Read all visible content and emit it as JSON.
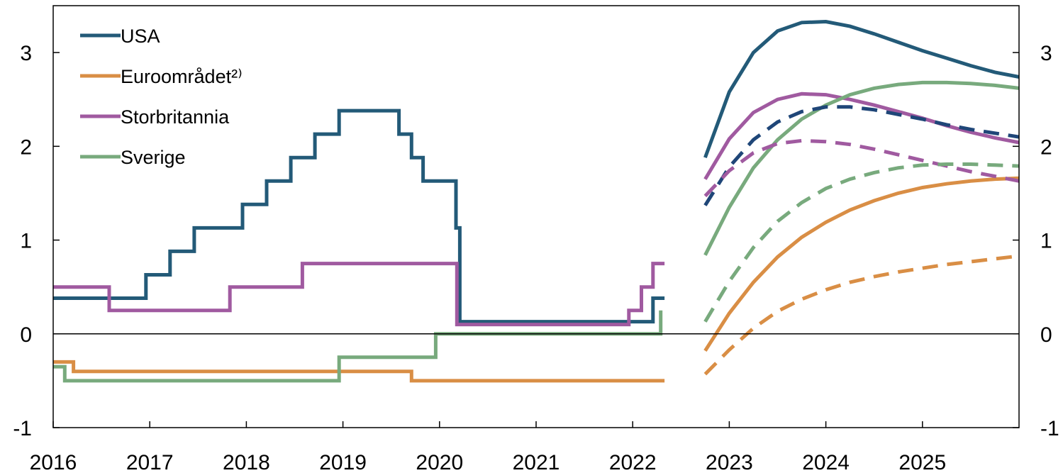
{
  "chart_data": {
    "type": "line",
    "title": "",
    "xlabel": "",
    "ylabel": "",
    "xlim": [
      2016,
      2026
    ],
    "ylim": [
      -1,
      3.5
    ],
    "x_ticks": [
      "2016",
      "2017",
      "2018",
      "2019",
      "2020",
      "2021",
      "2022",
      "2023",
      "2024",
      "2025"
    ],
    "y_ticks": [
      "-1",
      "0",
      "1",
      "2",
      "3"
    ],
    "zero_line": true,
    "grid": false,
    "legend_position": "top-left",
    "series": [
      {
        "name": "USA",
        "color": "#235a78",
        "style": "step",
        "points": [
          [
            2016.0,
            0.38
          ],
          [
            2016.96,
            0.38
          ],
          [
            2016.96,
            0.63
          ],
          [
            2017.21,
            0.63
          ],
          [
            2017.21,
            0.88
          ],
          [
            2017.46,
            0.88
          ],
          [
            2017.46,
            1.13
          ],
          [
            2017.96,
            1.13
          ],
          [
            2017.96,
            1.38
          ],
          [
            2018.21,
            1.38
          ],
          [
            2018.21,
            1.63
          ],
          [
            2018.46,
            1.63
          ],
          [
            2018.46,
            1.88
          ],
          [
            2018.71,
            1.88
          ],
          [
            2018.71,
            2.13
          ],
          [
            2018.96,
            2.13
          ],
          [
            2018.96,
            2.38
          ],
          [
            2019.58,
            2.38
          ],
          [
            2019.58,
            2.13
          ],
          [
            2019.71,
            2.13
          ],
          [
            2019.71,
            1.88
          ],
          [
            2019.83,
            1.88
          ],
          [
            2019.83,
            1.63
          ],
          [
            2020.17,
            1.63
          ],
          [
            2020.17,
            1.13
          ],
          [
            2020.21,
            1.13
          ],
          [
            2020.21,
            0.13
          ],
          [
            2022.21,
            0.13
          ],
          [
            2022.21,
            0.38
          ],
          [
            2022.33,
            0.38
          ]
        ]
      },
      {
        "name": "Euroområdet²⁾",
        "color": "#d98e45",
        "style": "step",
        "points": [
          [
            2016.0,
            -0.3
          ],
          [
            2016.21,
            -0.3
          ],
          [
            2016.21,
            -0.4
          ],
          [
            2019.71,
            -0.4
          ],
          [
            2019.71,
            -0.5
          ],
          [
            2022.33,
            -0.5
          ]
        ]
      },
      {
        "name": "Storbritannia",
        "color": "#a05aa0",
        "style": "step",
        "points": [
          [
            2016.0,
            0.5
          ],
          [
            2016.58,
            0.5
          ],
          [
            2016.58,
            0.25
          ],
          [
            2017.83,
            0.25
          ],
          [
            2017.83,
            0.5
          ],
          [
            2018.58,
            0.5
          ],
          [
            2018.58,
            0.75
          ],
          [
            2020.18,
            0.75
          ],
          [
            2020.18,
            0.1
          ],
          [
            2021.96,
            0.1
          ],
          [
            2021.96,
            0.25
          ],
          [
            2022.09,
            0.25
          ],
          [
            2022.09,
            0.5
          ],
          [
            2022.21,
            0.5
          ],
          [
            2022.21,
            0.75
          ],
          [
            2022.33,
            0.75
          ]
        ]
      },
      {
        "name": "Sverige",
        "color": "#78aa7d",
        "style": "step",
        "points": [
          [
            2016.0,
            -0.35
          ],
          [
            2016.12,
            -0.35
          ],
          [
            2016.12,
            -0.5
          ],
          [
            2018.96,
            -0.5
          ],
          [
            2018.96,
            -0.25
          ],
          [
            2019.96,
            -0.25
          ],
          [
            2019.96,
            0.0
          ],
          [
            2022.29,
            0.0
          ],
          [
            2022.29,
            0.25
          ]
        ]
      },
      {
        "name": "USA",
        "color": "#235a78",
        "style": "solid",
        "points": [
          [
            2022.75,
            1.88
          ],
          [
            2023.0,
            2.58
          ],
          [
            2023.25,
            3.0
          ],
          [
            2023.5,
            3.23
          ],
          [
            2023.75,
            3.32
          ],
          [
            2024.0,
            3.33
          ],
          [
            2024.25,
            3.28
          ],
          [
            2024.5,
            3.2
          ],
          [
            2024.75,
            3.11
          ],
          [
            2025.0,
            3.02
          ],
          [
            2025.25,
            2.94
          ],
          [
            2025.5,
            2.86
          ],
          [
            2025.75,
            2.79
          ],
          [
            2026.0,
            2.74
          ]
        ]
      },
      {
        "name": "Storbritannia",
        "color": "#a05aa0",
        "style": "solid",
        "points": [
          [
            2022.75,
            1.65
          ],
          [
            2023.0,
            2.08
          ],
          [
            2023.25,
            2.36
          ],
          [
            2023.5,
            2.5
          ],
          [
            2023.75,
            2.56
          ],
          [
            2024.0,
            2.55
          ],
          [
            2024.25,
            2.5
          ],
          [
            2024.5,
            2.44
          ],
          [
            2024.75,
            2.37
          ],
          [
            2025.0,
            2.3
          ],
          [
            2025.25,
            2.22
          ],
          [
            2025.5,
            2.15
          ],
          [
            2025.75,
            2.09
          ],
          [
            2026.0,
            2.04
          ]
        ]
      },
      {
        "name": "Sverige",
        "color": "#78aa7d",
        "style": "solid",
        "points": [
          [
            2022.75,
            0.84
          ],
          [
            2023.0,
            1.35
          ],
          [
            2023.25,
            1.77
          ],
          [
            2023.5,
            2.07
          ],
          [
            2023.75,
            2.29
          ],
          [
            2024.0,
            2.44
          ],
          [
            2024.25,
            2.55
          ],
          [
            2024.5,
            2.62
          ],
          [
            2024.75,
            2.66
          ],
          [
            2025.0,
            2.68
          ],
          [
            2025.25,
            2.68
          ],
          [
            2025.5,
            2.67
          ],
          [
            2025.75,
            2.65
          ],
          [
            2026.0,
            2.62
          ]
        ]
      },
      {
        "name": "Euroområdet²⁾",
        "color": "#d98e45",
        "style": "solid",
        "points": [
          [
            2022.75,
            -0.18
          ],
          [
            2023.0,
            0.22
          ],
          [
            2023.25,
            0.55
          ],
          [
            2023.5,
            0.82
          ],
          [
            2023.75,
            1.03
          ],
          [
            2024.0,
            1.19
          ],
          [
            2024.25,
            1.32
          ],
          [
            2024.5,
            1.42
          ],
          [
            2024.75,
            1.5
          ],
          [
            2025.0,
            1.56
          ],
          [
            2025.25,
            1.6
          ],
          [
            2025.5,
            1.63
          ],
          [
            2025.75,
            1.65
          ],
          [
            2026.0,
            1.66
          ]
        ]
      },
      {
        "name": "USA",
        "color": "#1f4678",
        "style": "dashed",
        "points": [
          [
            2022.75,
            1.37
          ],
          [
            2023.0,
            1.78
          ],
          [
            2023.25,
            2.07
          ],
          [
            2023.5,
            2.26
          ],
          [
            2023.75,
            2.37
          ],
          [
            2024.0,
            2.42
          ],
          [
            2024.25,
            2.42
          ],
          [
            2024.5,
            2.39
          ],
          [
            2024.75,
            2.34
          ],
          [
            2025.0,
            2.29
          ],
          [
            2025.25,
            2.23
          ],
          [
            2025.5,
            2.18
          ],
          [
            2025.75,
            2.14
          ],
          [
            2026.0,
            2.1
          ]
        ]
      },
      {
        "name": "Storbritannia",
        "color": "#a05aa0",
        "style": "dashed",
        "points": [
          [
            2022.75,
            1.47
          ],
          [
            2023.0,
            1.74
          ],
          [
            2023.25,
            1.93
          ],
          [
            2023.5,
            2.03
          ],
          [
            2023.75,
            2.06
          ],
          [
            2024.0,
            2.05
          ],
          [
            2024.25,
            2.02
          ],
          [
            2024.5,
            1.97
          ],
          [
            2024.75,
            1.91
          ],
          [
            2025.0,
            1.85
          ],
          [
            2025.25,
            1.79
          ],
          [
            2025.5,
            1.73
          ],
          [
            2025.75,
            1.68
          ],
          [
            2026.0,
            1.63
          ]
        ]
      },
      {
        "name": "Sverige",
        "color": "#78aa7d",
        "style": "dashed",
        "points": [
          [
            2022.75,
            0.13
          ],
          [
            2023.0,
            0.56
          ],
          [
            2023.25,
            0.92
          ],
          [
            2023.5,
            1.2
          ],
          [
            2023.75,
            1.4
          ],
          [
            2024.0,
            1.55
          ],
          [
            2024.25,
            1.65
          ],
          [
            2024.5,
            1.72
          ],
          [
            2024.75,
            1.77
          ],
          [
            2025.0,
            1.8
          ],
          [
            2025.25,
            1.81
          ],
          [
            2025.5,
            1.81
          ],
          [
            2025.75,
            1.8
          ],
          [
            2026.0,
            1.79
          ]
        ]
      },
      {
        "name": "Euroområdet²⁾",
        "color": "#d98e45",
        "style": "dashed",
        "points": [
          [
            2022.75,
            -0.43
          ],
          [
            2023.0,
            -0.17
          ],
          [
            2023.25,
            0.06
          ],
          [
            2023.5,
            0.24
          ],
          [
            2023.75,
            0.37
          ],
          [
            2024.0,
            0.47
          ],
          [
            2024.25,
            0.55
          ],
          [
            2024.5,
            0.61
          ],
          [
            2024.75,
            0.66
          ],
          [
            2025.0,
            0.7
          ],
          [
            2025.25,
            0.74
          ],
          [
            2025.5,
            0.77
          ],
          [
            2025.75,
            0.8
          ],
          [
            2026.0,
            0.83
          ]
        ]
      }
    ],
    "legend": [
      {
        "label": "USA",
        "color": "#235a78"
      },
      {
        "label": "Euroområdet²⁾",
        "color": "#d98e45"
      },
      {
        "label": "Storbritannia",
        "color": "#a05aa0"
      },
      {
        "label": "Sverige",
        "color": "#78aa7d"
      }
    ]
  }
}
